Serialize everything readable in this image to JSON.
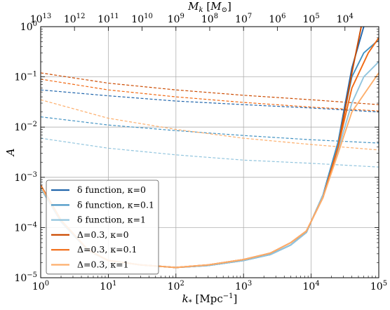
{
  "chart_data": {
    "type": "line",
    "xscale": "log",
    "yscale": "log",
    "xlim": [
      1,
      100000
    ],
    "ylim": [
      1e-05,
      1
    ],
    "grid": true,
    "xlabel": "k_* [Mpc^-1]",
    "ylabel": "A",
    "top_axis_label": "M_k [M_⊙]",
    "x_tick_labels": [
      {
        "base": "10",
        "exp": "0",
        "value": 1
      },
      {
        "base": "10",
        "exp": "1",
        "value": 10
      },
      {
        "base": "10",
        "exp": "2",
        "value": 100
      },
      {
        "base": "10",
        "exp": "3",
        "value": 1000
      },
      {
        "base": "10",
        "exp": "4",
        "value": 10000
      },
      {
        "base": "10",
        "exp": "5",
        "value": 100000
      }
    ],
    "y_tick_labels": [
      {
        "base": "10",
        "exp": "−5",
        "value": 1e-05
      },
      {
        "base": "10",
        "exp": "−4",
        "value": 0.0001
      },
      {
        "base": "10",
        "exp": "−3",
        "value": 0.001
      },
      {
        "base": "10",
        "exp": "−2",
        "value": 0.01
      },
      {
        "base": "10",
        "exp": "−1",
        "value": 0.1
      },
      {
        "base": "10",
        "exp": "0",
        "value": 1
      }
    ],
    "top_tick_labels": [
      {
        "base": "10",
        "exp": "13",
        "k": 1.0
      },
      {
        "base": "10",
        "exp": "12",
        "k": 3.16
      },
      {
        "base": "10",
        "exp": "11",
        "k": 10
      },
      {
        "base": "10",
        "exp": "10",
        "k": 31.6
      },
      {
        "base": "10",
        "exp": "9",
        "k": 100
      },
      {
        "base": "10",
        "exp": "8",
        "k": 316
      },
      {
        "base": "10",
        "exp": "7",
        "k": 1000
      },
      {
        "base": "10",
        "exp": "6",
        "k": 3160
      },
      {
        "base": "10",
        "exp": "5",
        "k": 10000
      },
      {
        "base": "10",
        "exp": "4",
        "k": 31600
      }
    ],
    "legend_position": "lower-left",
    "series": [
      {
        "name": "δ function, κ=0",
        "color": "#2166ac",
        "style": "solid",
        "x": [
          1,
          2,
          5,
          10,
          30,
          100,
          300,
          1000,
          2500,
          5000,
          8500,
          15000,
          25000,
          40000,
          60000
        ],
        "y": [
          0.00065,
          0.00013,
          3.5e-05,
          2.2e-05,
          1.8e-05,
          1.6e-05,
          1.75e-05,
          2.2e-05,
          2.9e-05,
          4.5e-05,
          8e-05,
          0.00045,
          0.005,
          0.15,
          1.0
        ]
      },
      {
        "name": "δ function, κ=0.1",
        "color": "#4393c3",
        "style": "solid",
        "x": [
          1,
          2,
          5,
          10,
          30,
          100,
          300,
          1000,
          2500,
          5000,
          8500,
          15000,
          25000,
          40000,
          60000,
          100000
        ],
        "y": [
          0.00062,
          0.00013,
          3.5e-05,
          2.2e-05,
          1.8e-05,
          1.6e-05,
          1.75e-05,
          2.2e-05,
          2.9e-05,
          4.5e-05,
          8e-05,
          0.00045,
          0.005,
          0.1,
          0.3,
          0.55
        ]
      },
      {
        "name": "δ function, κ=1",
        "color": "#92c5de",
        "style": "solid",
        "x": [
          1,
          2,
          5,
          10,
          30,
          100,
          300,
          1000,
          2500,
          5000,
          8500,
          15000,
          25000,
          40000,
          60000,
          100000
        ],
        "y": [
          0.0006,
          0.00013,
          3.5e-05,
          2.2e-05,
          1.8e-05,
          1.6e-05,
          1.75e-05,
          2.2e-05,
          2.9e-05,
          4.5e-05,
          8e-05,
          0.00045,
          0.0035,
          0.03,
          0.1,
          0.2
        ]
      },
      {
        "name": "Δ=0.3, κ=0",
        "color": "#cc4c02",
        "style": "solid",
        "x": [
          1,
          2,
          5,
          10,
          30,
          100,
          300,
          1000,
          2500,
          5000,
          8500,
          15000,
          25000,
          40000,
          55000
        ],
        "y": [
          0.0007,
          0.00014,
          3.6e-05,
          2.2e-05,
          1.8e-05,
          1.6e-05,
          1.8e-05,
          2.3e-05,
          3.1e-05,
          5e-05,
          8.5e-05,
          0.0004,
          0.004,
          0.12,
          1.0
        ]
      },
      {
        "name": "Δ=0.3, κ=0.1",
        "color": "#f16913",
        "style": "solid",
        "x": [
          1,
          2,
          5,
          10,
          30,
          100,
          300,
          1000,
          2500,
          5000,
          8500,
          15000,
          25000,
          40000,
          70000,
          100000
        ],
        "y": [
          0.00068,
          0.00014,
          3.6e-05,
          2.2e-05,
          1.8e-05,
          1.6e-05,
          1.8e-05,
          2.3e-05,
          3.1e-05,
          5e-05,
          8.5e-05,
          0.0004,
          0.004,
          0.06,
          0.3,
          0.6
        ]
      },
      {
        "name": "Δ=0.3, κ=1",
        "color": "#fdae6b",
        "style": "solid",
        "x": [
          1,
          2,
          5,
          10,
          30,
          100,
          300,
          1000,
          2500,
          5000,
          8500,
          15000,
          25000,
          40000,
          70000,
          100000
        ],
        "y": [
          0.00066,
          0.00014,
          3.6e-05,
          2.2e-05,
          1.8e-05,
          1.6e-05,
          1.8e-05,
          2.3e-05,
          3.1e-05,
          5e-05,
          8.5e-05,
          0.0004,
          0.003,
          0.02,
          0.06,
          0.12
        ]
      },
      {
        "color": "#2166ac",
        "style": "dashed",
        "x": [
          1,
          10,
          100,
          1000,
          10000,
          100000
        ],
        "y": [
          0.055,
          0.042,
          0.033,
          0.028,
          0.024,
          0.02
        ]
      },
      {
        "color": "#4393c3",
        "style": "dashed",
        "x": [
          1,
          10,
          100,
          1000,
          10000,
          100000
        ],
        "y": [
          0.016,
          0.011,
          0.0085,
          0.0068,
          0.0056,
          0.0048
        ]
      },
      {
        "color": "#92c5de",
        "style": "dashed",
        "x": [
          1,
          10,
          100,
          1000,
          10000,
          100000
        ],
        "y": [
          0.006,
          0.0038,
          0.0028,
          0.0022,
          0.0019,
          0.0016
        ]
      },
      {
        "color": "#cc4c02",
        "style": "dashed",
        "x": [
          1,
          10,
          100,
          1000,
          10000,
          100000
        ],
        "y": [
          0.12,
          0.075,
          0.055,
          0.043,
          0.035,
          0.028
        ]
      },
      {
        "color": "#f16913",
        "style": "dashed",
        "x": [
          1,
          10,
          100,
          1000,
          10000,
          100000
        ],
        "y": [
          0.09,
          0.055,
          0.04,
          0.031,
          0.025,
          0.021
        ]
      },
      {
        "color": "#fdae6b",
        "style": "dashed",
        "x": [
          1,
          10,
          100,
          1000,
          10000,
          100000
        ],
        "y": [
          0.035,
          0.015,
          0.009,
          0.006,
          0.0045,
          0.0035
        ]
      }
    ]
  }
}
